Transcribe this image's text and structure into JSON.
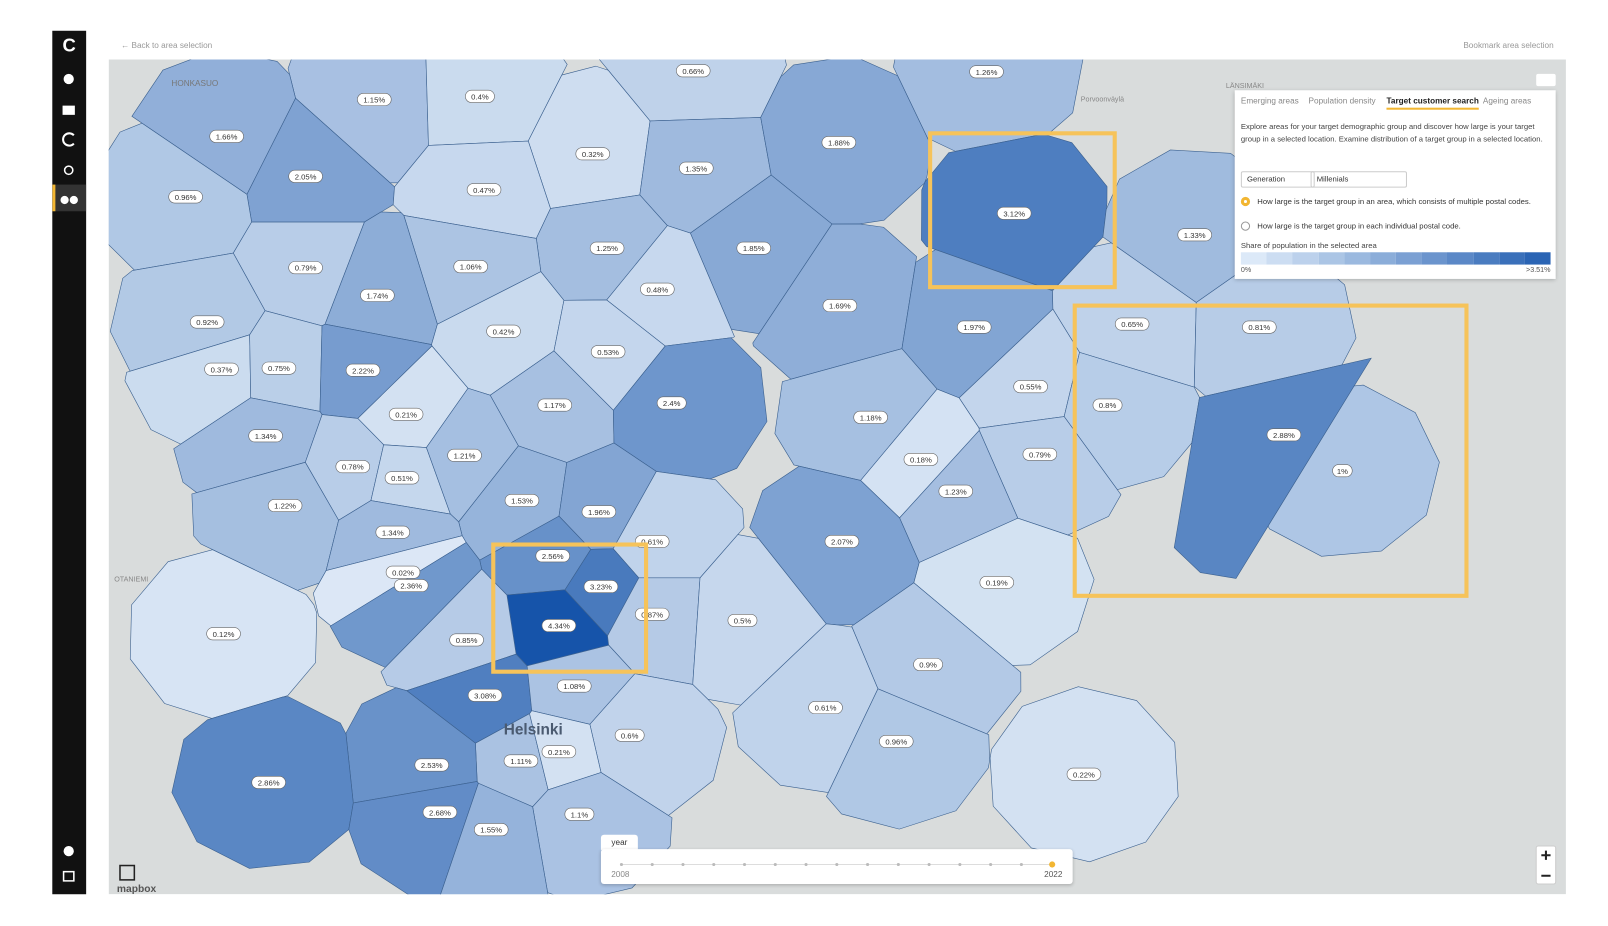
{
  "sidebar": {
    "logo": "C"
  },
  "top_bar": {
    "back": "← Back to area selection",
    "bookmark": "Bookmark area selection"
  },
  "panel": {
    "tabs": [
      "Emerging areas",
      "Population density",
      "Target customer search",
      "Ageing areas"
    ],
    "active_tab": 2,
    "description": "Explore areas for your target demographic group and discover how large is your target group in a selected location. Examine distribution of a target group in a selected location.",
    "dropdowns": [
      "Generation",
      "Millenials"
    ],
    "options": [
      "How large is the target group in an area, which consists of multiple postal codes.",
      "How large is the target group in each individual postal code."
    ],
    "selected_option": 0,
    "legend": {
      "title": "Share of population in the selected area",
      "min_label": "0%",
      "max_label": ">3.51%",
      "color_domain": [
        0,
        3.51
      ],
      "colors": [
        "#dce9f8",
        "#2a64b4"
      ]
    }
  },
  "map": {
    "place_labels": [
      "HONKASUO",
      "OTANIEMI",
      "LÄNSIMÄKI",
      "Porvoonväylä",
      "Helsinki"
    ],
    "attribution": "mapbox",
    "regions": [
      {
        "value": 1.15,
        "label": "1.15%"
      },
      {
        "value": 0.4,
        "label": "0.4%"
      },
      {
        "value": 0.66,
        "label": "0.66%"
      },
      {
        "value": 1.26,
        "label": "1.26%"
      },
      {
        "value": 1.66,
        "label": "1.66%"
      },
      {
        "value": 2.05,
        "label": "2.05%"
      },
      {
        "value": 0.32,
        "label": "0.32%"
      },
      {
        "value": 1.35,
        "label": "1.35%"
      },
      {
        "value": 1.88,
        "label": "1.88%"
      },
      {
        "value": 0.96,
        "label": "0.96%"
      },
      {
        "value": 0.47,
        "label": "0.47%"
      },
      {
        "value": 3.12,
        "label": "3.12%"
      },
      {
        "value": 1.33,
        "label": "1.33%"
      },
      {
        "value": 1.25,
        "label": "1.25%"
      },
      {
        "value": 1.85,
        "label": "1.85%"
      },
      {
        "value": 0.79,
        "label": "0.79%"
      },
      {
        "value": 1.06,
        "label": "1.06%"
      },
      {
        "value": 1.74,
        "label": "1.74%"
      },
      {
        "value": 0.48,
        "label": "0.48%"
      },
      {
        "value": 1.69,
        "label": "1.69%"
      },
      {
        "value": 0.92,
        "label": "0.92%"
      },
      {
        "value": 0.42,
        "label": "0.42%"
      },
      {
        "value": 1.97,
        "label": "1.97%"
      },
      {
        "value": 0.65,
        "label": "0.65%"
      },
      {
        "value": 0.81,
        "label": "0.81%"
      },
      {
        "value": 0.37,
        "label": "0.37%"
      },
      {
        "value": 0.75,
        "label": "0.75%"
      },
      {
        "value": 2.22,
        "label": "2.22%"
      },
      {
        "value": 0.53,
        "label": "0.53%"
      },
      {
        "value": 0.55,
        "label": "0.55%"
      },
      {
        "value": 1.17,
        "label": "1.17%"
      },
      {
        "value": 2.4,
        "label": "2.4%"
      },
      {
        "value": 0.21,
        "label": "0.21%"
      },
      {
        "value": 0.8,
        "label": "0.8%"
      },
      {
        "value": 1.34,
        "label": "1.34%"
      },
      {
        "value": 1.18,
        "label": "1.18%"
      },
      {
        "value": 2.88,
        "label": "2.88%"
      },
      {
        "value": 0.78,
        "label": "0.78%"
      },
      {
        "value": 0.51,
        "label": "0.51%"
      },
      {
        "value": 1.21,
        "label": "1.21%"
      },
      {
        "value": 0.18,
        "label": "0.18%"
      },
      {
        "value": 0.79,
        "label": "0.79%"
      },
      {
        "value": 1,
        "label": "1%"
      },
      {
        "value": 1.22,
        "label": "1.22%"
      },
      {
        "value": 1.53,
        "label": "1.53%"
      },
      {
        "value": 1.96,
        "label": "1.96%"
      },
      {
        "value": 1.23,
        "label": "1.23%"
      },
      {
        "value": 1.34,
        "label": "1.34%"
      },
      {
        "value": 0.61,
        "label": "0.61%"
      },
      {
        "value": 2.07,
        "label": "2.07%"
      },
      {
        "value": 2.56,
        "label": "2.56%"
      },
      {
        "value": 0.02,
        "label": "0.02%"
      },
      {
        "value": 2.36,
        "label": "2.36%"
      },
      {
        "value": 3.23,
        "label": "3.23%"
      },
      {
        "value": 0.19,
        "label": "0.19%"
      },
      {
        "value": 0.12,
        "label": "0.12%"
      },
      {
        "value": 4.34,
        "label": "4.34%"
      },
      {
        "value": 0.87,
        "label": "0.87%"
      },
      {
        "value": 0.5,
        "label": "0.5%"
      },
      {
        "value": 0.85,
        "label": "0.85%"
      },
      {
        "value": 0.9,
        "label": "0.9%"
      },
      {
        "value": 3.08,
        "label": "3.08%"
      },
      {
        "value": 1.08,
        "label": "1.08%"
      },
      {
        "value": 0.61,
        "label": "0.61%"
      },
      {
        "value": 0.6,
        "label": "0.6%"
      },
      {
        "value": 0.96,
        "label": "0.96%"
      },
      {
        "value": 1.11,
        "label": "1.11%"
      },
      {
        "value": 0.21,
        "label": "0.21%"
      },
      {
        "value": 2.53,
        "label": "2.53%"
      },
      {
        "value": 2.86,
        "label": "2.86%"
      },
      {
        "value": 0.22,
        "label": "0.22%"
      },
      {
        "value": 2.68,
        "label": "2.68%"
      },
      {
        "value": 1.1,
        "label": "1.1%"
      },
      {
        "value": 1.55,
        "label": "1.55%"
      }
    ]
  },
  "year_slider": {
    "title": "year",
    "start": "2008",
    "end": "2022"
  }
}
